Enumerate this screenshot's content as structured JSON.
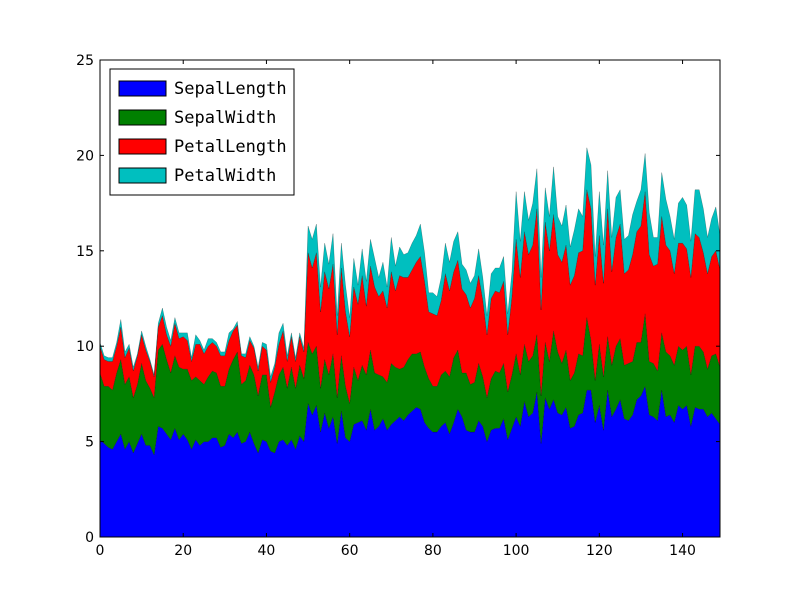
{
  "chart_data": {
    "type": "area",
    "stacked": true,
    "title": "",
    "xlabel": "",
    "ylabel": "",
    "xlim": [
      0,
      149
    ],
    "ylim": [
      0,
      25
    ],
    "xticks": [
      0,
      20,
      40,
      60,
      80,
      100,
      120,
      140
    ],
    "yticks": [
      0,
      5,
      10,
      15,
      20,
      25
    ],
    "grid": false,
    "legend_position": "top-left",
    "x": [
      0,
      1,
      2,
      3,
      4,
      5,
      6,
      7,
      8,
      9,
      10,
      11,
      12,
      13,
      14,
      15,
      16,
      17,
      18,
      19,
      20,
      21,
      22,
      23,
      24,
      25,
      26,
      27,
      28,
      29,
      30,
      31,
      32,
      33,
      34,
      35,
      36,
      37,
      38,
      39,
      40,
      41,
      42,
      43,
      44,
      45,
      46,
      47,
      48,
      49,
      50,
      51,
      52,
      53,
      54,
      55,
      56,
      57,
      58,
      59,
      60,
      61,
      62,
      63,
      64,
      65,
      66,
      67,
      68,
      69,
      70,
      71,
      72,
      73,
      74,
      75,
      76,
      77,
      78,
      79,
      80,
      81,
      82,
      83,
      84,
      85,
      86,
      87,
      88,
      89,
      90,
      91,
      92,
      93,
      94,
      95,
      96,
      97,
      98,
      99,
      100,
      101,
      102,
      103,
      104,
      105,
      106,
      107,
      108,
      109,
      110,
      111,
      112,
      113,
      114,
      115,
      116,
      117,
      118,
      119,
      120,
      121,
      122,
      123,
      124,
      125,
      126,
      127,
      128,
      129,
      130,
      131,
      132,
      133,
      134,
      135,
      136,
      137,
      138,
      139,
      140,
      141,
      142,
      143,
      144,
      145,
      146,
      147,
      148,
      149
    ],
    "series": [
      {
        "name": "SepalLength",
        "color": "#0000ff",
        "values": [
          5.1,
          4.9,
          4.7,
          4.6,
          5.0,
          5.4,
          4.6,
          5.0,
          4.4,
          4.9,
          5.4,
          4.8,
          4.8,
          4.3,
          5.8,
          5.7,
          5.4,
          5.1,
          5.7,
          5.1,
          5.4,
          5.1,
          4.6,
          5.1,
          4.8,
          5.0,
          5.0,
          5.2,
          5.2,
          4.7,
          4.8,
          5.4,
          5.2,
          5.5,
          4.9,
          5.0,
          5.5,
          4.9,
          4.4,
          5.1,
          5.0,
          4.5,
          4.4,
          5.0,
          5.1,
          4.8,
          5.1,
          4.6,
          5.3,
          5.0,
          7.0,
          6.4,
          6.9,
          5.5,
          6.5,
          5.7,
          6.3,
          4.9,
          6.6,
          5.2,
          5.0,
          5.9,
          6.0,
          6.1,
          5.6,
          6.7,
          5.6,
          5.8,
          6.2,
          5.6,
          5.9,
          6.1,
          6.3,
          6.1,
          6.4,
          6.6,
          6.8,
          6.7,
          6.0,
          5.7,
          5.5,
          5.5,
          5.8,
          6.0,
          5.4,
          6.0,
          6.7,
          6.3,
          5.6,
          5.5,
          5.5,
          6.1,
          5.8,
          5.0,
          5.6,
          5.7,
          5.7,
          6.2,
          5.1,
          5.7,
          6.3,
          5.8,
          7.1,
          6.3,
          6.5,
          7.6,
          4.9,
          7.3,
          6.7,
          7.2,
          6.5,
          6.4,
          6.8,
          5.7,
          5.8,
          6.4,
          6.5,
          7.7,
          7.7,
          6.0,
          6.9,
          5.6,
          7.7,
          6.3,
          6.7,
          7.2,
          6.2,
          6.1,
          6.4,
          7.2,
          7.4,
          7.9,
          6.4,
          6.3,
          6.1,
          7.7,
          6.3,
          6.4,
          6.0,
          6.9,
          6.7,
          6.9,
          5.8,
          6.8,
          6.7,
          6.7,
          6.3,
          6.5,
          6.2,
          5.9
        ]
      },
      {
        "name": "SepalWidth",
        "color": "#008000",
        "values": [
          3.5,
          3.0,
          3.2,
          3.1,
          3.6,
          3.9,
          3.4,
          3.4,
          2.9,
          3.1,
          3.7,
          3.4,
          3.0,
          3.0,
          4.0,
          4.4,
          3.9,
          3.5,
          3.8,
          3.8,
          3.4,
          3.7,
          3.6,
          3.3,
          3.4,
          3.0,
          3.4,
          3.5,
          3.4,
          3.2,
          3.1,
          3.4,
          4.1,
          4.2,
          3.1,
          3.2,
          3.5,
          3.6,
          3.0,
          3.4,
          3.5,
          2.3,
          3.2,
          3.5,
          3.8,
          3.0,
          3.8,
          3.2,
          3.7,
          3.3,
          3.2,
          3.2,
          3.1,
          2.3,
          2.8,
          2.8,
          3.3,
          2.4,
          2.9,
          2.7,
          2.0,
          3.0,
          2.2,
          2.9,
          2.9,
          3.1,
          3.0,
          2.7,
          2.2,
          2.5,
          3.2,
          2.8,
          2.5,
          2.8,
          2.9,
          3.0,
          2.8,
          3.0,
          2.9,
          2.6,
          2.4,
          2.4,
          2.7,
          2.7,
          3.0,
          3.4,
          3.1,
          2.3,
          3.0,
          2.5,
          2.6,
          3.0,
          2.6,
          2.3,
          2.7,
          3.0,
          2.9,
          2.9,
          2.5,
          2.8,
          3.3,
          2.7,
          3.0,
          2.9,
          3.0,
          3.0,
          2.5,
          2.9,
          2.5,
          3.6,
          3.2,
          2.7,
          3.0,
          2.5,
          2.8,
          3.2,
          3.0,
          3.8,
          2.6,
          2.2,
          3.2,
          2.8,
          2.8,
          2.7,
          3.3,
          3.2,
          2.8,
          3.0,
          2.8,
          3.0,
          2.8,
          3.8,
          2.8,
          2.8,
          2.6,
          3.0,
          3.4,
          3.1,
          3.0,
          3.1,
          3.1,
          3.1,
          2.7,
          3.2,
          3.3,
          3.0,
          2.5,
          3.0,
          3.4,
          3.0
        ]
      },
      {
        "name": "PetalLength",
        "color": "#ff0000",
        "values": [
          1.4,
          1.4,
          1.3,
          1.5,
          1.4,
          1.7,
          1.4,
          1.5,
          1.4,
          1.5,
          1.5,
          1.6,
          1.4,
          1.1,
          1.2,
          1.5,
          1.3,
          1.4,
          1.7,
          1.5,
          1.7,
          1.5,
          1.0,
          1.7,
          1.9,
          1.6,
          1.6,
          1.5,
          1.4,
          1.6,
          1.6,
          1.5,
          1.5,
          1.4,
          1.5,
          1.2,
          1.3,
          1.4,
          1.3,
          1.5,
          1.3,
          1.3,
          1.3,
          1.6,
          1.9,
          1.4,
          1.6,
          1.4,
          1.5,
          1.4,
          4.7,
          4.5,
          4.9,
          4.0,
          4.6,
          4.5,
          4.7,
          3.3,
          4.6,
          3.9,
          3.5,
          4.2,
          4.0,
          4.7,
          3.6,
          4.4,
          4.5,
          4.1,
          4.5,
          3.9,
          4.8,
          4.0,
          4.9,
          4.7,
          4.3,
          4.4,
          4.8,
          5.0,
          4.5,
          3.5,
          3.8,
          3.7,
          3.9,
          5.1,
          4.5,
          4.5,
          4.7,
          4.4,
          4.1,
          4.0,
          4.4,
          4.6,
          4.0,
          3.3,
          4.2,
          4.2,
          4.2,
          4.3,
          3.0,
          4.1,
          6.0,
          5.1,
          5.9,
          5.6,
          5.8,
          6.6,
          4.5,
          6.3,
          5.8,
          6.1,
          5.1,
          5.3,
          5.5,
          5.0,
          5.1,
          5.3,
          5.5,
          6.7,
          6.9,
          5.0,
          5.7,
          4.9,
          6.7,
          4.9,
          5.7,
          6.0,
          4.8,
          4.9,
          5.6,
          5.8,
          6.1,
          6.4,
          5.6,
          5.1,
          5.6,
          6.1,
          5.6,
          5.5,
          4.8,
          5.4,
          5.6,
          5.1,
          5.1,
          5.9,
          5.7,
          5.2,
          5.0,
          5.2,
          5.4,
          5.1
        ]
      },
      {
        "name": "PetalWidth",
        "color": "#00bfbf",
        "values": [
          0.2,
          0.2,
          0.2,
          0.2,
          0.2,
          0.4,
          0.3,
          0.2,
          0.2,
          0.1,
          0.2,
          0.2,
          0.1,
          0.1,
          0.2,
          0.4,
          0.4,
          0.3,
          0.3,
          0.3,
          0.2,
          0.4,
          0.2,
          0.5,
          0.2,
          0.2,
          0.4,
          0.2,
          0.2,
          0.2,
          0.2,
          0.4,
          0.1,
          0.2,
          0.1,
          0.2,
          0.2,
          0.1,
          0.2,
          0.2,
          0.3,
          0.3,
          0.2,
          0.6,
          0.4,
          0.3,
          0.2,
          0.2,
          0.2,
          0.2,
          1.4,
          1.5,
          1.5,
          1.3,
          1.5,
          1.3,
          1.6,
          1.0,
          1.3,
          1.4,
          1.0,
          1.5,
          1.0,
          1.4,
          1.3,
          1.4,
          1.5,
          1.0,
          1.5,
          1.1,
          1.8,
          1.3,
          1.5,
          1.2,
          1.3,
          1.4,
          1.4,
          1.7,
          1.5,
          1.0,
          1.1,
          1.0,
          1.2,
          1.6,
          1.5,
          1.6,
          1.5,
          1.3,
          1.3,
          1.3,
          1.2,
          1.4,
          1.2,
          1.0,
          1.3,
          1.2,
          1.3,
          1.3,
          1.1,
          1.3,
          2.5,
          1.9,
          2.1,
          1.8,
          2.2,
          2.1,
          1.7,
          1.8,
          1.8,
          2.5,
          2.0,
          1.9,
          2.1,
          2.0,
          2.4,
          2.3,
          1.8,
          2.2,
          2.3,
          1.5,
          2.3,
          2.0,
          2.0,
          1.8,
          2.1,
          1.8,
          1.8,
          1.8,
          2.1,
          1.6,
          1.9,
          2.0,
          2.2,
          1.5,
          1.4,
          2.3,
          2.4,
          1.8,
          1.8,
          2.1,
          2.4,
          2.3,
          1.9,
          2.3,
          2.5,
          2.3,
          1.9,
          2.0,
          2.3,
          1.8
        ]
      }
    ]
  }
}
